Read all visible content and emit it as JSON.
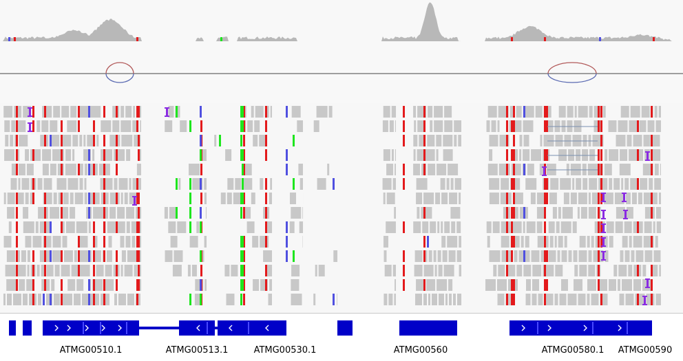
{
  "genes": [
    {
      "label": "ATMG00510.1"
    },
    {
      "label": "ATMG00513.1"
    },
    {
      "label": "ATMG00530.1"
    },
    {
      "label": "ATMG00560"
    },
    {
      "label": "ATMG00580.1"
    },
    {
      "label": "ATMG00590"
    }
  ],
  "colors": {
    "coverage": "#b8b8b8",
    "read": "#c8c8c8",
    "mismatch_red": "#e31a1c",
    "mismatch_green": "#1ee61e",
    "mismatch_blue": "#5050e0",
    "insertion": "#8a2be2",
    "feature": "#0000c8",
    "junction_plus": "#b25a5a",
    "junction_minus": "#5a6ab2"
  }
}
